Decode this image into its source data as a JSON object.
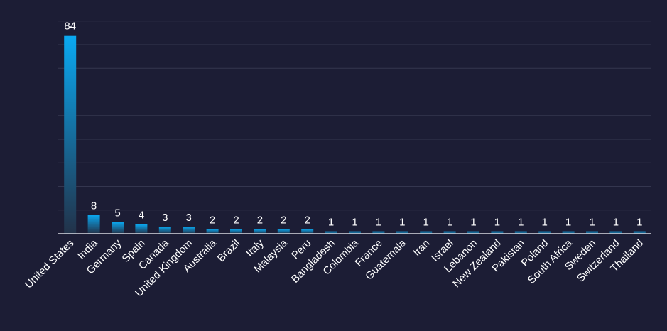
{
  "chart_data": {
    "type": "bar",
    "title": "",
    "xlabel": "",
    "ylabel": "",
    "categories": [
      "United States",
      "India",
      "Germany",
      "Spain",
      "Canada",
      "United Kingdom",
      "Australia",
      "Brazil",
      "Italy",
      "Malaysia",
      "Peru",
      "Bangladesh",
      "Colombia",
      "France",
      "Guatemala",
      "Iran",
      "Israel",
      "Lebanon",
      "New Zealand",
      "Pakistan",
      "Poland",
      "South Africa",
      "Sweden",
      "Switzerland",
      "Thailand"
    ],
    "values": [
      84,
      8,
      5,
      4,
      3,
      3,
      2,
      2,
      2,
      2,
      2,
      1,
      1,
      1,
      1,
      1,
      1,
      1,
      1,
      1,
      1,
      1,
      1,
      1,
      1
    ],
    "ylim": [
      0,
      90
    ],
    "gridline_step": 10,
    "grid": true,
    "legend": false,
    "bar_color_top": "#0aa9f2",
    "bar_color_bottom": "#223249",
    "background_color": "#1c1d35"
  }
}
